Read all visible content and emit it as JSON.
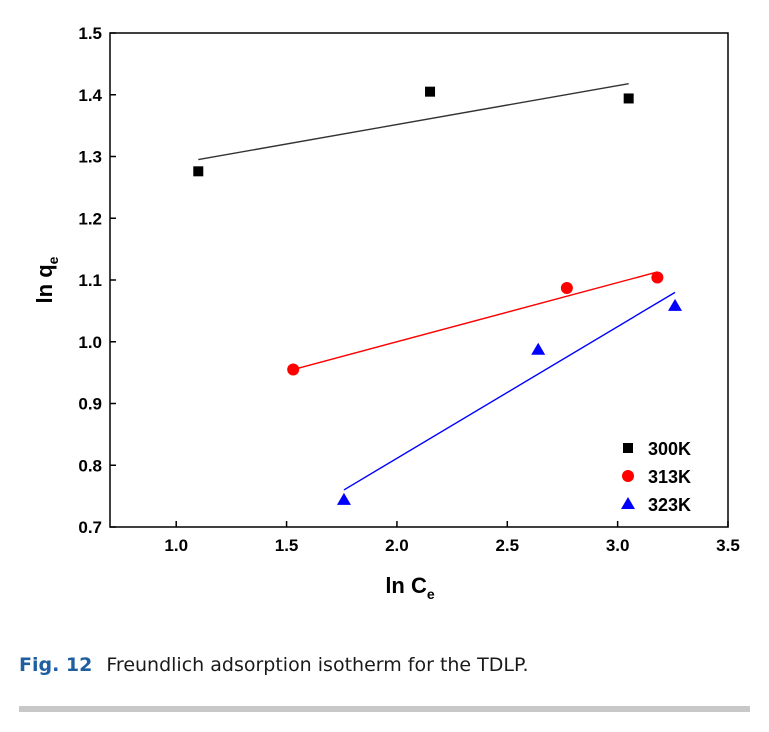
{
  "chart_data": {
    "type": "scatter",
    "xlabel": "ln C",
    "xlabel_sub": "e",
    "ylabel": "ln q",
    "ylabel_sub": "e",
    "xlim": [
      0.7,
      3.5
    ],
    "ylim": [
      0.7,
      1.5
    ],
    "xticks": [
      "1.0",
      "1.5",
      "2.0",
      "2.5",
      "3.0",
      "3.5"
    ],
    "yticks": [
      "0.7",
      "0.8",
      "0.9",
      "1.0",
      "1.1",
      "1.2",
      "1.3",
      "1.4",
      "1.5"
    ],
    "legend_position": "bottom-right",
    "series": [
      {
        "name": "300K",
        "marker": "square",
        "color": "#000000",
        "points": [
          [
            1.1,
            1.276
          ],
          [
            2.15,
            1.405
          ],
          [
            3.05,
            1.394
          ]
        ],
        "fit": [
          [
            1.1,
            1.295
          ],
          [
            3.05,
            1.418
          ]
        ]
      },
      {
        "name": "313K",
        "marker": "circle",
        "color": "#ff0000",
        "points": [
          [
            1.53,
            0.955
          ],
          [
            2.77,
            1.087
          ],
          [
            3.18,
            1.104
          ]
        ],
        "fit": [
          [
            1.53,
            0.955
          ],
          [
            3.18,
            1.113
          ]
        ]
      },
      {
        "name": "323K",
        "marker": "triangle",
        "color": "#0000ff",
        "points": [
          [
            1.76,
            0.744
          ],
          [
            2.64,
            0.987
          ],
          [
            3.26,
            1.058
          ]
        ],
        "fit": [
          [
            1.76,
            0.76
          ],
          [
            3.26,
            1.08
          ]
        ]
      }
    ]
  },
  "caption": {
    "label": "Fig. 12",
    "text": "Freundlich adsorption isotherm for the TDLP."
  }
}
